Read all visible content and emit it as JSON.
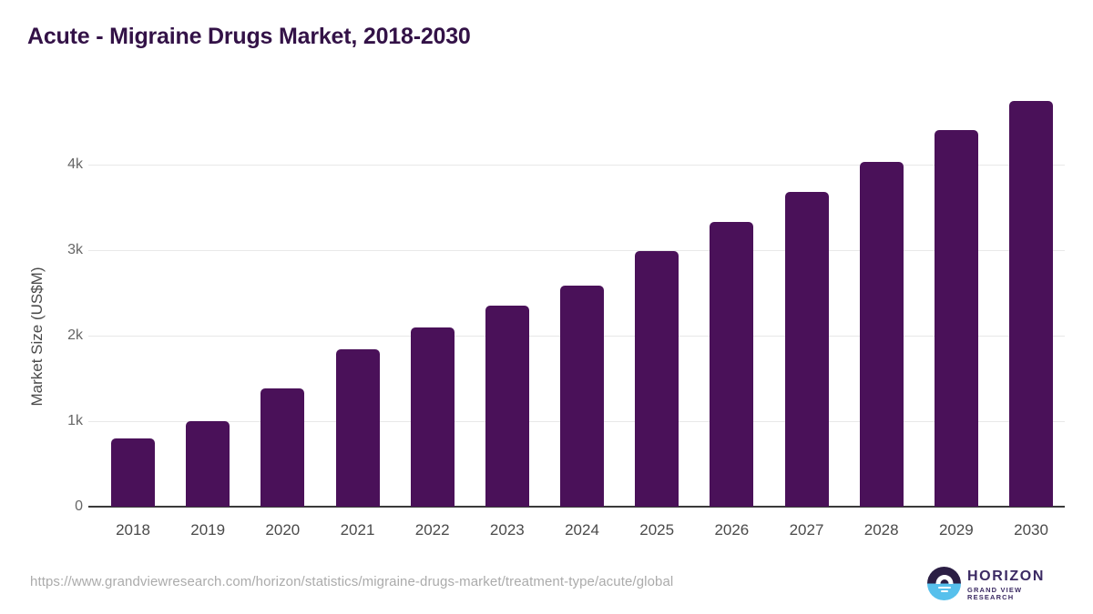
{
  "title": "Acute - Migraine Drugs Market, 2018-2030",
  "footer": {
    "source_url": "https://www.grandviewresearch.com/horizon/statistics/migraine-drugs-market/treatment-type/acute/global",
    "logo": {
      "brand": "HORIZON",
      "sub": "GRAND VIEW RESEARCH"
    }
  },
  "colors": {
    "title": "#331247",
    "bar": "#4a1159",
    "gridline": "#e8e8e8",
    "axis_line": "#3a3a3a",
    "x_tick": "#4a4a4a",
    "y_tick": "#666666",
    "url_text": "#ababab",
    "logo_dark": "#2b1e44",
    "logo_blue": "#57c0ec",
    "logo_text": "#3b2a63"
  },
  "chart_data": {
    "type": "bar",
    "title": "Acute - Migraine Drugs Market, 2018-2030",
    "categories": [
      "2018",
      "2019",
      "2020",
      "2021",
      "2022",
      "2023",
      "2024",
      "2025",
      "2026",
      "2027",
      "2028",
      "2029",
      "2030"
    ],
    "values": [
      800,
      1000,
      1380,
      1840,
      2100,
      2350,
      2590,
      2990,
      3330,
      3680,
      4030,
      4400,
      4740
    ],
    "xlabel": "",
    "ylabel": "Market Size (US$M)",
    "ylim": [
      0,
      5000
    ],
    "yticks": [
      {
        "value": 0,
        "label": "0"
      },
      {
        "value": 1000,
        "label": "1k"
      },
      {
        "value": 2000,
        "label": "2k"
      },
      {
        "value": 3000,
        "label": "3k"
      },
      {
        "value": 4000,
        "label": "4k"
      }
    ],
    "grid": "horizontal",
    "legend": "none",
    "bar_color": "#4a1159"
  }
}
